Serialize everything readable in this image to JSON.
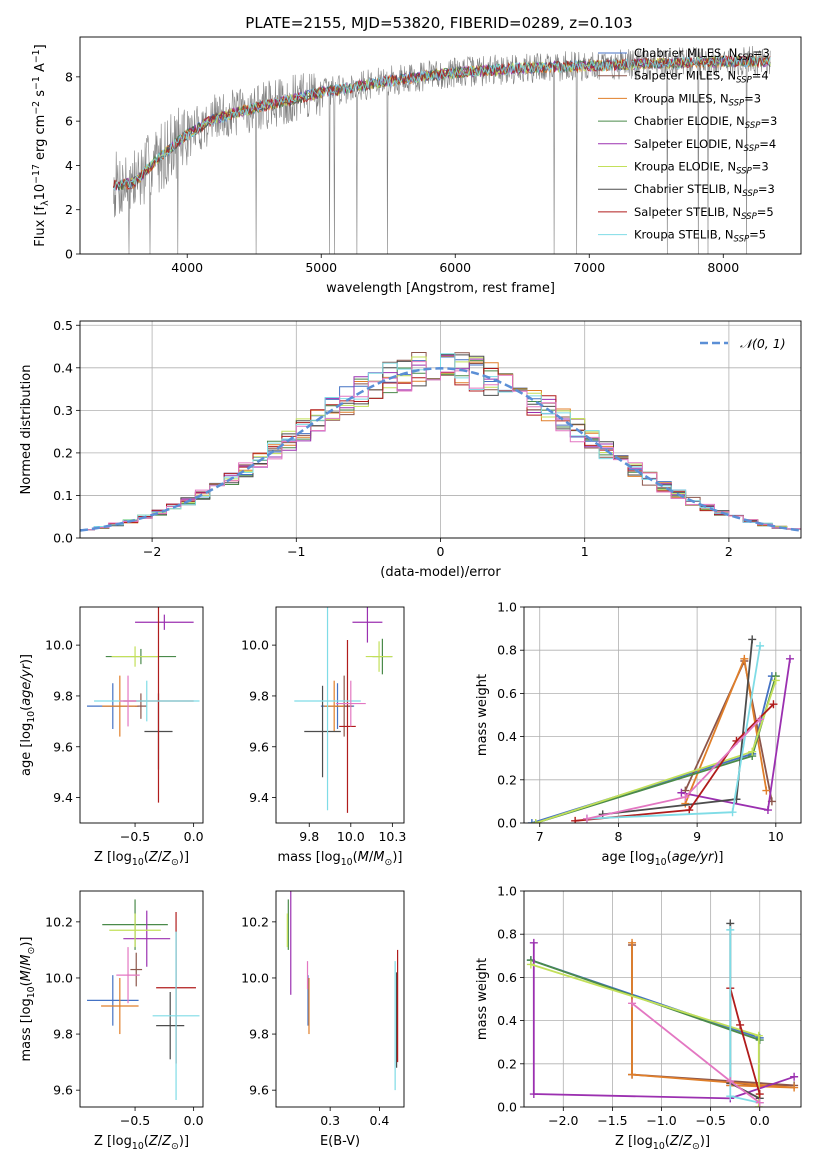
{
  "figure_title": "PLATE=2155, MJD=53820, FIBERID=0289, z=0.103",
  "colors": {
    "Chabrier MILES": "#4472c4",
    "Salpeter MILES": "#8c564b",
    "Kroupa MILES": "#e07f2a",
    "Chabrier ELODIE": "#4a8a4a",
    "Salpeter ELODIE": "#9b30b0",
    "Kroupa ELODIE": "#c3e05a",
    "Chabrier STELIB": "#4d4d4d",
    "Salpeter STELIB": "#b01c1c",
    "Kroupa STELIB": "#7fdce6",
    "pink": "#e377c2",
    "data": "#808080",
    "gauss": "#5b8fd6",
    "grid": "#b0b0b0"
  },
  "chart_data": [
    {
      "id": "spectrum",
      "type": "line",
      "xlabel": "wavelength [Angstrom, rest frame]",
      "ylabel": "Flux [fλ10⁻¹⁷ erg cm⁻² s⁻¹ A⁻¹]",
      "xlim": [
        3200,
        8580
      ],
      "ylim": [
        0,
        9.8
      ],
      "xticks": [
        4000,
        5000,
        6000,
        7000,
        8000
      ],
      "yticks": [
        0,
        2,
        4,
        6,
        8
      ],
      "grid": false,
      "legend_position": "top-right",
      "continuum": [
        [
          3450,
          3.1
        ],
        [
          3600,
          3.2
        ],
        [
          3800,
          4.4
        ],
        [
          4000,
          5.4
        ],
        [
          4200,
          6.1
        ],
        [
          4500,
          6.6
        ],
        [
          4800,
          7.0
        ],
        [
          5000,
          7.3
        ],
        [
          5300,
          7.6
        ],
        [
          5600,
          7.9
        ],
        [
          6000,
          8.2
        ],
        [
          6500,
          8.4
        ],
        [
          7000,
          8.5
        ],
        [
          7500,
          8.6
        ],
        [
          8000,
          8.7
        ],
        [
          8350,
          8.7
        ]
      ],
      "series": [
        {
          "name": "Chabrier MILES, N_SSP=3",
          "color_key": "Chabrier MILES"
        },
        {
          "name": "Salpeter MILES, N_SSP=4",
          "color_key": "Salpeter MILES"
        },
        {
          "name": "Kroupa MILES, N_SSP=3",
          "color_key": "Kroupa MILES"
        },
        {
          "name": "Chabrier ELODIE, N_SSP=3",
          "color_key": "Chabrier ELODIE"
        },
        {
          "name": "Salpeter ELODIE, N_SSP=4",
          "color_key": "Salpeter ELODIE"
        },
        {
          "name": "Kroupa ELODIE, N_SSP=3",
          "color_key": "Kroupa ELODIE"
        },
        {
          "name": "Chabrier STELIB, N_SSP=3",
          "color_key": "Chabrier STELIB"
        },
        {
          "name": "Salpeter STELIB, N_SSP=5",
          "color_key": "Salpeter STELIB"
        },
        {
          "name": "Kroupa STELIB, N_SSP=5",
          "color_key": "Kroupa STELIB"
        }
      ]
    },
    {
      "id": "residuals",
      "type": "line",
      "xlabel": "(data-model)/error",
      "ylabel": "Normed distribution",
      "xlim": [
        -2.5,
        2.5
      ],
      "ylim": [
        0,
        0.51
      ],
      "xticks": [
        -2,
        -1,
        0,
        1,
        2
      ],
      "yticks": [
        0.0,
        0.1,
        0.2,
        0.3,
        0.4,
        0.5
      ],
      "grid": true,
      "legend_position": "top-right",
      "legend": "𝒩(0, 1)",
      "bin_width": 0.1
    },
    {
      "id": "age-z",
      "type": "scatter",
      "xlabel": "Z [log10(Z/Z⊙)]",
      "ylabel": "age  [log10(age/yr)]",
      "xlim": [
        -0.97,
        0.08
      ],
      "ylim": [
        9.3,
        10.15
      ],
      "xticks": [
        -0.5,
        0.0
      ],
      "yticks": [
        9.4,
        9.6,
        9.8,
        10.0
      ],
      "points": [
        {
          "c": "Chabrier MILES",
          "x": -0.69,
          "y": 9.76,
          "xerr": 0.22,
          "yerr": 0.09
        },
        {
          "c": "Salpeter MILES",
          "x": -0.45,
          "y": 9.76,
          "xerr": 0.05,
          "yerr": 0.05
        },
        {
          "c": "Kroupa MILES",
          "x": -0.63,
          "y": 9.76,
          "xerr": 0.15,
          "yerr": 0.12
        },
        {
          "c": "Chabrier ELODIE",
          "x": -0.45,
          "y": 9.955,
          "xerr": 0.3,
          "yerr": 0.03
        },
        {
          "c": "Salpeter ELODIE",
          "x": -0.25,
          "y": 10.09,
          "xerr": 0.25,
          "yerr": 0.03
        },
        {
          "c": "Kroupa ELODIE",
          "x": -0.5,
          "y": 9.955,
          "xerr": 0.2,
          "yerr": 0.04
        },
        {
          "c": "Chabrier STELIB",
          "x": -0.3,
          "y": 9.66,
          "xerr": 0.12,
          "yerr": 0.15
        },
        {
          "c": "Salpeter STELIB",
          "x": -0.3,
          "y": 9.78,
          "xerr": 0.3,
          "yerr": 0.4
        },
        {
          "c": "Kroupa STELIB",
          "x": -0.4,
          "y": 9.78,
          "xerr": 0.45,
          "yerr": 0.08
        },
        {
          "c": "pink",
          "x": -0.56,
          "y": 9.78,
          "xerr": 0.07,
          "yerr": 0.1
        }
      ]
    },
    {
      "id": "age-mass",
      "type": "scatter",
      "xlabel": "mass [log10(M/M⊙)]",
      "ylabel": "",
      "xlim": [
        9.55,
        10.32
      ],
      "ylim": [
        9.3,
        10.15
      ],
      "xticks": [
        9.75,
        10.0,
        10.25
      ],
      "yticks": [
        9.4,
        9.6,
        9.8,
        10.0
      ],
      "points": [
        {
          "c": "Chabrier MILES",
          "x": 9.92,
          "y": 9.76,
          "xerr": 0.1,
          "yerr": 0.09
        },
        {
          "c": "Salpeter MILES",
          "x": 9.96,
          "y": 9.76,
          "xerr": 0.05,
          "yerr": 0.12
        },
        {
          "c": "Kroupa MILES",
          "x": 9.9,
          "y": 9.76,
          "xerr": 0.06,
          "yerr": 0.1
        },
        {
          "c": "Chabrier ELODIE",
          "x": 10.19,
          "y": 9.955,
          "xerr": 0.06,
          "yerr": 0.07
        },
        {
          "c": "Salpeter ELODIE",
          "x": 10.1,
          "y": 10.09,
          "xerr": 0.09,
          "yerr": 0.08
        },
        {
          "c": "Kroupa ELODIE",
          "x": 10.17,
          "y": 9.955,
          "xerr": 0.08,
          "yerr": 0.06
        },
        {
          "c": "Chabrier STELIB",
          "x": 9.83,
          "y": 9.66,
          "xerr": 0.11,
          "yerr": 0.18
        },
        {
          "c": "Salpeter STELIB",
          "x": 9.98,
          "y": 9.68,
          "xerr": 0.05,
          "yerr": 0.34
        },
        {
          "c": "Kroupa STELIB",
          "x": 9.86,
          "y": 9.78,
          "xerr": 0.2,
          "yerr": 0.43
        },
        {
          "c": "pink",
          "x": 10.0,
          "y": 9.77,
          "xerr": 0.09,
          "yerr": 0.09
        }
      ]
    },
    {
      "id": "weight-age",
      "type": "line",
      "xlabel": "age  [log10(age/yr)]",
      "ylabel": "mass weight",
      "xlim": [
        6.8,
        10.32
      ],
      "ylim": [
        0.0,
        1.0
      ],
      "xticks": [
        7,
        8,
        9,
        10
      ],
      "yticks": [
        0.0,
        0.2,
        0.4,
        0.6,
        0.8,
        1.0
      ],
      "grid": true,
      "series": [
        {
          "c": "Chabrier MILES",
          "x": [
            6.9,
            9.7,
            9.95
          ],
          "y": [
            0.0,
            0.32,
            0.68
          ]
        },
        {
          "c": "Salpeter MILES",
          "x": [
            8.85,
            9.6,
            9.95
          ],
          "y": [
            0.15,
            0.75,
            0.1
          ]
        },
        {
          "c": "Kroupa MILES",
          "x": [
            8.85,
            9.6,
            9.88
          ],
          "y": [
            0.09,
            0.76,
            0.15
          ]
        },
        {
          "c": "Chabrier ELODIE",
          "x": [
            6.95,
            9.7,
            10.0
          ],
          "y": [
            0.0,
            0.31,
            0.68
          ]
        },
        {
          "c": "Salpeter ELODIE",
          "x": [
            8.8,
            9.9,
            10.18
          ],
          "y": [
            0.14,
            0.06,
            0.76
          ]
        },
        {
          "c": "Kroupa ELODIE",
          "x": [
            6.95,
            9.7,
            10.0
          ],
          "y": [
            0.0,
            0.33,
            0.66
          ]
        },
        {
          "c": "Chabrier STELIB",
          "x": [
            7.8,
            9.5,
            9.7
          ],
          "y": [
            0.04,
            0.11,
            0.85
          ]
        },
        {
          "c": "Salpeter STELIB",
          "x": [
            7.45,
            8.9,
            9.5,
            9.97
          ],
          "y": [
            0.01,
            0.06,
            0.38,
            0.55
          ]
        },
        {
          "c": "Kroupa STELIB",
          "x": [
            7.6,
            9.45,
            9.8
          ],
          "y": [
            0.02,
            0.05,
            0.82
          ]
        },
        {
          "c": "pink",
          "x": [
            7.6,
            8.85,
            9.8
          ],
          "y": [
            0.02,
            0.12,
            0.48
          ]
        }
      ]
    },
    {
      "id": "mass-z",
      "type": "scatter",
      "xlabel": "Z [log10(Z/Z⊙)]",
      "ylabel": "mass [log10(M/M⊙)]",
      "xlim": [
        -0.97,
        0.08
      ],
      "ylim": [
        9.54,
        10.31
      ],
      "xticks": [
        -0.5,
        0.0
      ],
      "yticks": [
        9.6,
        9.8,
        10.0,
        10.2
      ],
      "points": [
        {
          "c": "Chabrier MILES",
          "x": -0.69,
          "y": 9.92,
          "xerr": 0.22,
          "yerr": 0.09
        },
        {
          "c": "Salpeter MILES",
          "x": -0.49,
          "y": 10.03,
          "xerr": 0.05,
          "yerr": 0.06
        },
        {
          "c": "Kroupa MILES",
          "x": -0.63,
          "y": 9.9,
          "xerr": 0.16,
          "yerr": 0.1
        },
        {
          "c": "Chabrier ELODIE",
          "x": -0.5,
          "y": 10.19,
          "xerr": 0.28,
          "yerr": 0.09
        },
        {
          "c": "Salpeter ELODIE",
          "x": -0.4,
          "y": 10.14,
          "xerr": 0.2,
          "yerr": 0.1
        },
        {
          "c": "Kroupa ELODIE",
          "x": -0.5,
          "y": 10.17,
          "xerr": 0.22,
          "yerr": 0.06
        },
        {
          "c": "Chabrier STELIB",
          "x": -0.2,
          "y": 9.83,
          "xerr": 0.12,
          "yerr": 0.12
        },
        {
          "c": "Salpeter STELIB",
          "x": -0.15,
          "y": 9.965,
          "xerr": 0.17,
          "yerr": 0.27
        },
        {
          "c": "Kroupa STELIB",
          "x": -0.15,
          "y": 9.865,
          "xerr": 0.2,
          "yerr": 0.3
        },
        {
          "c": "pink",
          "x": -0.56,
          "y": 10.01,
          "xerr": 0.1,
          "yerr": 0.1
        }
      ]
    },
    {
      "id": "mass-ebv",
      "type": "scatter",
      "xlabel": "E(B-V)",
      "ylabel": "",
      "xlim": [
        0.19,
        0.45
      ],
      "ylim": [
        9.54,
        10.31
      ],
      "xticks": [
        0.3,
        0.4
      ],
      "yticks": [
        9.6,
        9.8,
        10.0,
        10.2
      ],
      "points": [
        {
          "c": "Chabrier MILES",
          "x": 0.255,
          "y": 9.92,
          "yerr": 0.09
        },
        {
          "c": "Kroupa MILES",
          "x": 0.257,
          "y": 9.9,
          "yerr": 0.1
        },
        {
          "c": "Chabrier ELODIE",
          "x": 0.215,
          "y": 10.19,
          "yerr": 0.09
        },
        {
          "c": "Salpeter ELODIE",
          "x": 0.22,
          "y": 10.14,
          "yerr": 0.2
        },
        {
          "c": "Kroupa ELODIE",
          "x": 0.213,
          "y": 10.17,
          "yerr": 0.06
        },
        {
          "c": "Chabrier STELIB",
          "x": 0.435,
          "y": 9.85,
          "yerr": 0.17
        },
        {
          "c": "Salpeter STELIB",
          "x": 0.437,
          "y": 9.9,
          "yerr": 0.2
        },
        {
          "c": "Kroupa STELIB",
          "x": 0.432,
          "y": 9.83,
          "yerr": 0.23
        },
        {
          "c": "pink",
          "x": 0.254,
          "y": 10.01,
          "yerr": 0.05
        }
      ]
    },
    {
      "id": "weight-z",
      "type": "line",
      "xlabel": "Z [log10(Z/Z⊙)]",
      "ylabel": "mass weight",
      "xlim": [
        -2.4,
        0.42
      ],
      "ylim": [
        0.0,
        1.0
      ],
      "xticks": [
        -2.0,
        -1.5,
        -1.0,
        -0.5,
        0.0
      ],
      "yticks": [
        0.0,
        0.2,
        0.4,
        0.6,
        0.8,
        1.0
      ],
      "grid": true,
      "series": [
        {
          "c": "Chabrier MILES",
          "x": [
            -2.33,
            0.0
          ],
          "y": [
            0.68,
            0.32
          ]
        },
        {
          "c": "Salpeter MILES",
          "x": [
            -1.3,
            -1.3,
            0.35,
            -0.3
          ],
          "y": [
            0.75,
            0.15,
            0.1,
            0.1
          ]
        },
        {
          "c": "Kroupa MILES",
          "x": [
            -1.3,
            -1.3,
            0.35,
            -0.3
          ],
          "y": [
            0.76,
            0.15,
            0.09,
            0.1
          ]
        },
        {
          "c": "Chabrier ELODIE",
          "x": [
            -2.33,
            0.0
          ],
          "y": [
            0.68,
            0.31
          ]
        },
        {
          "c": "Salpeter ELODIE",
          "x": [
            -2.3,
            -2.3,
            -0.3,
            0.35
          ],
          "y": [
            0.76,
            0.06,
            0.04,
            0.14
          ]
        },
        {
          "c": "Kroupa ELODIE",
          "x": [
            -2.33,
            -0.01,
            -0.01
          ],
          "y": [
            0.66,
            0.33,
            0.0
          ]
        },
        {
          "c": "Chabrier STELIB",
          "x": [
            -0.3,
            -0.3,
            0.0
          ],
          "y": [
            0.85,
            0.11,
            0.04
          ]
        },
        {
          "c": "Salpeter STELIB",
          "x": [
            -0.3,
            -0.2,
            0.0
          ],
          "y": [
            0.55,
            0.38,
            0.06
          ]
        },
        {
          "c": "Kroupa STELIB",
          "x": [
            -0.3,
            -0.3,
            0.0
          ],
          "y": [
            0.82,
            0.05,
            0.02
          ]
        },
        {
          "c": "pink",
          "x": [
            -1.3,
            -0.3,
            0.0
          ],
          "y": [
            0.48,
            0.12,
            0.02
          ]
        }
      ]
    }
  ]
}
